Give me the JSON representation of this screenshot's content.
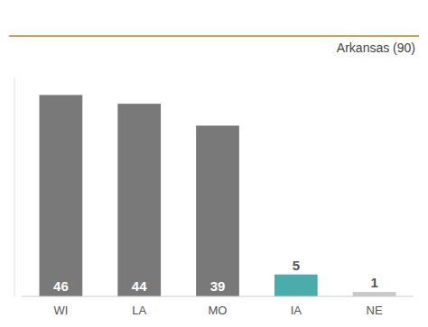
{
  "chart_data": {
    "type": "bar",
    "categories": [
      "WI",
      "LA",
      "MO",
      "IA",
      "NE"
    ],
    "values": [
      46,
      44,
      39,
      5,
      1
    ],
    "colors": [
      "#797979",
      "#797979",
      "#797979",
      "#4AACAB",
      "#C8C8C8"
    ],
    "ylim": [
      0,
      50
    ],
    "grid": false,
    "data_labels": true,
    "tick_labels": "x",
    "annotations": [
      {
        "text": "Arkansas (90)",
        "color": "#D4A050"
      }
    ]
  }
}
